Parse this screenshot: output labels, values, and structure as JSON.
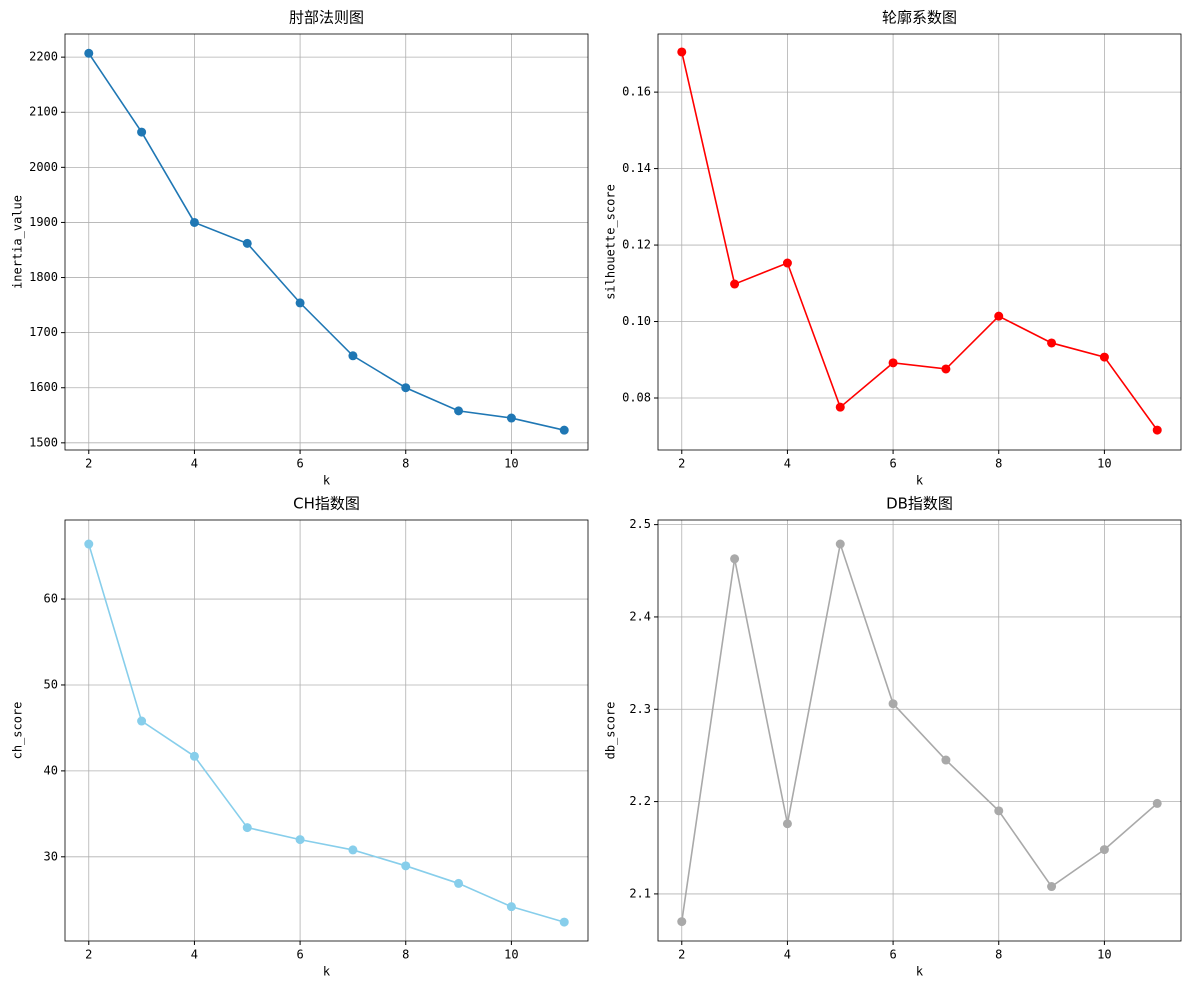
{
  "chart_data": [
    {
      "type": "line",
      "title": "肘部法则图",
      "xlabel": "k",
      "ylabel": "inertia_value",
      "x": [
        2,
        3,
        4,
        5,
        6,
        7,
        8,
        9,
        10,
        11
      ],
      "series": [
        {
          "name": "inertia_value",
          "color": "#1f77b4",
          "values": [
            2207,
            2064,
            1900,
            1862,
            1754,
            1658,
            1600,
            1558,
            1545,
            1523
          ]
        }
      ],
      "xlim": [
        1.55,
        11.45
      ],
      "xticks": [
        2,
        4,
        6,
        8,
        10
      ],
      "ylim": [
        1487,
        2242
      ],
      "yticks": [
        1500,
        1600,
        1700,
        1800,
        1900,
        2000,
        2100,
        2200
      ],
      "grid": true
    },
    {
      "type": "line",
      "title": "轮廓系数图",
      "xlabel": "k",
      "ylabel": "silhouette_score",
      "x": [
        2,
        3,
        4,
        5,
        6,
        7,
        8,
        9,
        10,
        11
      ],
      "series": [
        {
          "name": "silhouette_score",
          "color": "#ff0000",
          "values": [
            0.1705,
            0.1098,
            0.1153,
            0.0776,
            0.0892,
            0.0876,
            0.1014,
            0.0944,
            0.0907,
            0.0716
          ]
        }
      ],
      "xlim": [
        1.55,
        11.45
      ],
      "xticks": [
        2,
        4,
        6,
        8,
        10
      ],
      "ylim": [
        0.0664,
        0.1752
      ],
      "yticks": [
        0.08,
        {
          "value": 0.1,
          "label": "0.10"
        },
        0.12,
        0.14,
        0.16
      ],
      "grid": true
    },
    {
      "type": "line",
      "title": "CH指数图",
      "xlabel": "k",
      "ylabel": "ch_score",
      "x": [
        2,
        3,
        4,
        5,
        6,
        7,
        8,
        9,
        10,
        11
      ],
      "series": [
        {
          "name": "ch_score",
          "color": "#87ceeb",
          "values": [
            66.4,
            45.8,
            41.7,
            33.4,
            32.0,
            30.8,
            28.95,
            26.9,
            24.2,
            22.4
          ]
        }
      ],
      "xlim": [
        1.55,
        11.45
      ],
      "xticks": [
        2,
        4,
        6,
        8,
        10
      ],
      "ylim": [
        20.2,
        69.2
      ],
      "yticks": [
        30,
        40,
        50,
        60
      ],
      "grid": true
    },
    {
      "type": "line",
      "title": "DB指数图",
      "xlabel": "k",
      "ylabel": "db_score",
      "x": [
        2,
        3,
        4,
        5,
        6,
        7,
        8,
        9,
        10,
        11
      ],
      "series": [
        {
          "name": "db_score",
          "color": "#a9a9a9",
          "values": [
            2.07,
            2.463,
            2.176,
            2.479,
            2.306,
            2.245,
            2.19,
            2.108,
            2.148,
            2.198
          ]
        }
      ],
      "xlim": [
        1.55,
        11.45
      ],
      "xticks": [
        2,
        4,
        6,
        8,
        10
      ],
      "ylim": [
        2.049,
        2.505
      ],
      "yticks": [
        2.1,
        2.2,
        2.3,
        2.4,
        2.5
      ],
      "grid": true
    }
  ]
}
